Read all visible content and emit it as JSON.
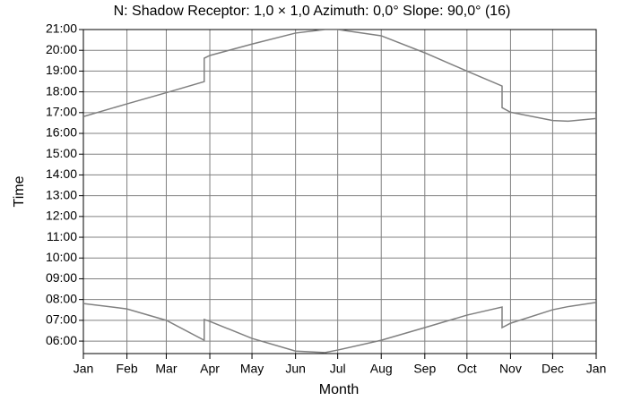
{
  "chart_data": {
    "type": "line",
    "title": "N: Shadow Receptor: 1,0 × 1,0  Azimuth: 0,0°  Slope: 90,0° (16)",
    "x_label": "Month",
    "y_label": "Time",
    "x": [
      0,
      31,
      59,
      86,
      86,
      90,
      120,
      151,
      172,
      181,
      212,
      243,
      273,
      298,
      298,
      304,
      334,
      345,
      365
    ],
    "series": [
      {
        "color": "#808080",
        "values": [
          16.81,
          17.42,
          17.96,
          18.49,
          19.62,
          19.75,
          20.3,
          20.83,
          21.0,
          21.0,
          20.7,
          19.88,
          19.0,
          18.28,
          17.24,
          17.02,
          16.62,
          16.59,
          16.72
        ]
      },
      {
        "color": "#808080",
        "values": [
          7.81,
          7.55,
          7.0,
          6.04,
          7.04,
          6.95,
          6.13,
          5.52,
          5.45,
          5.57,
          6.04,
          6.65,
          7.25,
          7.64,
          6.65,
          6.86,
          7.51,
          7.66,
          7.86
        ]
      }
    ],
    "xlim": [
      0,
      365
    ],
    "xticks": [
      {
        "value": 0,
        "label": "Jan"
      },
      {
        "value": 31,
        "label": "Feb"
      },
      {
        "value": 59,
        "label": "Mar"
      },
      {
        "value": 90,
        "label": "Apr"
      },
      {
        "value": 120,
        "label": "May"
      },
      {
        "value": 151,
        "label": "Jun"
      },
      {
        "value": 181,
        "label": "Jul"
      },
      {
        "value": 212,
        "label": "Aug"
      },
      {
        "value": 243,
        "label": "Sep"
      },
      {
        "value": 273,
        "label": "Oct"
      },
      {
        "value": 304,
        "label": "Nov"
      },
      {
        "value": 334,
        "label": "Dec"
      },
      {
        "value": 365,
        "label": "Jan"
      }
    ],
    "ylim": [
      5.4,
      21
    ],
    "yticks": [
      {
        "value": 6,
        "label": "06:00"
      },
      {
        "value": 7,
        "label": "07:00"
      },
      {
        "value": 8,
        "label": "08:00"
      },
      {
        "value": 9,
        "label": "09:00"
      },
      {
        "value": 10,
        "label": "10:00"
      },
      {
        "value": 11,
        "label": "11:00"
      },
      {
        "value": 12,
        "label": "12:00"
      },
      {
        "value": 13,
        "label": "13:00"
      },
      {
        "value": 14,
        "label": "14:00"
      },
      {
        "value": 15,
        "label": "15:00"
      },
      {
        "value": 16,
        "label": "16:00"
      },
      {
        "value": 17,
        "label": "17:00"
      },
      {
        "value": 18,
        "label": "18:00"
      },
      {
        "value": 19,
        "label": "19:00"
      },
      {
        "value": 20,
        "label": "20:00"
      },
      {
        "value": 21,
        "label": "21:00"
      }
    ],
    "grid": true
  }
}
